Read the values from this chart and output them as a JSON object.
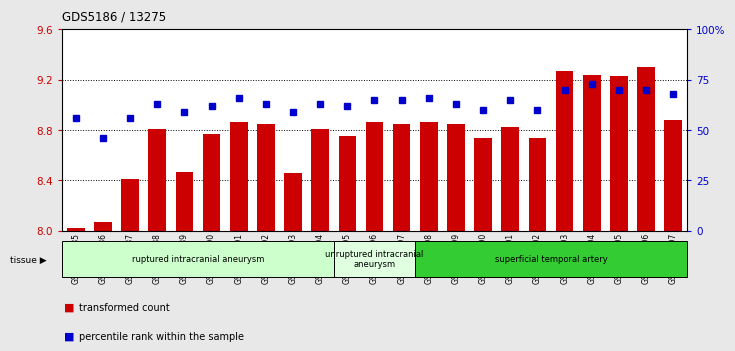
{
  "title": "GDS5186 / 13275",
  "samples": [
    "GSM1306885",
    "GSM1306886",
    "GSM1306887",
    "GSM1306888",
    "GSM1306889",
    "GSM1306890",
    "GSM1306891",
    "GSM1306892",
    "GSM1306893",
    "GSM1306894",
    "GSM1306895",
    "GSM1306896",
    "GSM1306897",
    "GSM1306898",
    "GSM1306899",
    "GSM1306900",
    "GSM1306901",
    "GSM1306902",
    "GSM1306903",
    "GSM1306904",
    "GSM1306905",
    "GSM1306906",
    "GSM1306907"
  ],
  "bar_values": [
    8.02,
    8.07,
    8.41,
    8.81,
    8.47,
    8.77,
    8.86,
    8.85,
    8.46,
    8.81,
    8.75,
    8.86,
    8.85,
    8.86,
    8.85,
    8.74,
    8.82,
    8.74,
    9.27,
    9.24,
    9.23,
    9.3,
    8.88
  ],
  "percentile_values": [
    56,
    46,
    56,
    63,
    59,
    62,
    66,
    63,
    59,
    63,
    62,
    65,
    65,
    66,
    63,
    60,
    65,
    60,
    70,
    73,
    70,
    70,
    68
  ],
  "bar_color": "#cc0000",
  "percentile_color": "#0000cc",
  "ylim_left": [
    8.0,
    9.6
  ],
  "ylim_right": [
    0,
    100
  ],
  "yticks_left": [
    8.0,
    8.4,
    8.8,
    9.2,
    9.6
  ],
  "yticks_right": [
    0,
    25,
    50,
    75,
    100
  ],
  "ytick_labels_right": [
    "0",
    "25",
    "50",
    "75",
    "100%"
  ],
  "groups": [
    {
      "label": "ruptured intracranial aneurysm",
      "start": 0,
      "end": 10,
      "color": "#ccffcc"
    },
    {
      "label": "unruptured intracranial\naneurysm",
      "start": 10,
      "end": 13,
      "color": "#e0ffe0"
    },
    {
      "label": "superficial temporal artery",
      "start": 13,
      "end": 23,
      "color": "#33cc33"
    }
  ],
  "tissue_label": "tissue",
  "legend_bar_label": "transformed count",
  "legend_pct_label": "percentile rank within the sample",
  "fig_bg_color": "#e8e8e8",
  "plot_bg_color": "#ffffff",
  "grid_color": "#000000"
}
